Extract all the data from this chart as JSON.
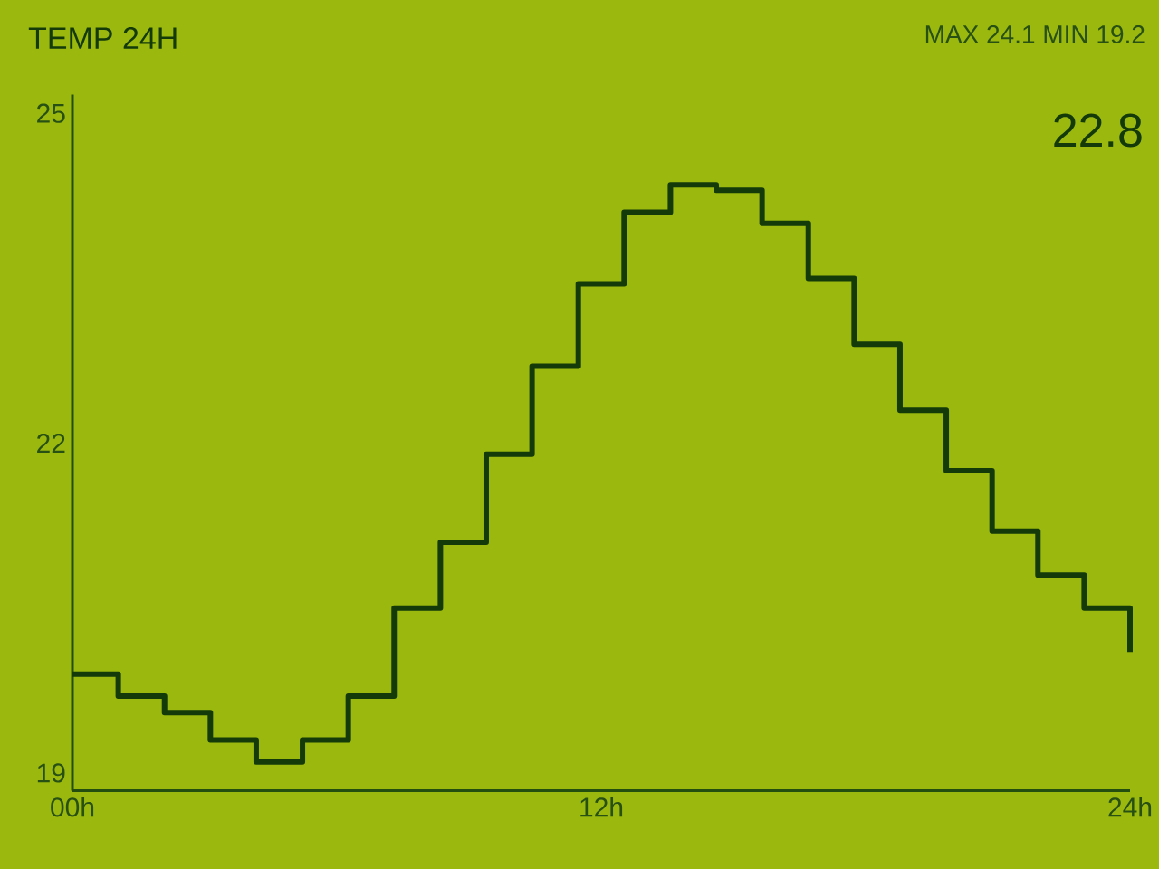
{
  "chart_data": {
    "type": "step",
    "title": "TEMP 24H",
    "annotations": [
      "MAX 24.1 MIN 19.2",
      "22.8"
    ],
    "x": [
      0,
      1.04,
      2.09,
      3.13,
      4.17,
      5.22,
      6.26,
      7.3,
      8.35,
      9.39,
      10.43,
      11.48,
      12.52,
      13.57,
      14.61,
      15.65,
      16.7,
      17.74,
      18.78,
      19.83,
      20.87,
      21.91,
      22.96,
      24
    ],
    "series": [
      {
        "color": "#143a0a",
        "values": [
          19.9,
          19.7,
          19.55,
          19.3,
          19.1,
          19.3,
          19.7,
          20.5,
          21.1,
          21.9,
          22.7,
          23.45,
          24.1,
          24.35,
          24.3,
          24.0,
          23.5,
          22.9,
          22.3,
          21.75,
          21.2,
          20.8,
          20.5,
          20.1
        ]
      }
    ],
    "xlim": [
      0,
      24
    ],
    "xticks": [
      {
        "value": 0,
        "label": "00h"
      },
      {
        "value": 12,
        "label": "12h"
      },
      {
        "value": 24,
        "label": "24h"
      }
    ],
    "ylim": [
      18.84,
      25.17
    ],
    "yticks": [
      19,
      22,
      25
    ]
  }
}
